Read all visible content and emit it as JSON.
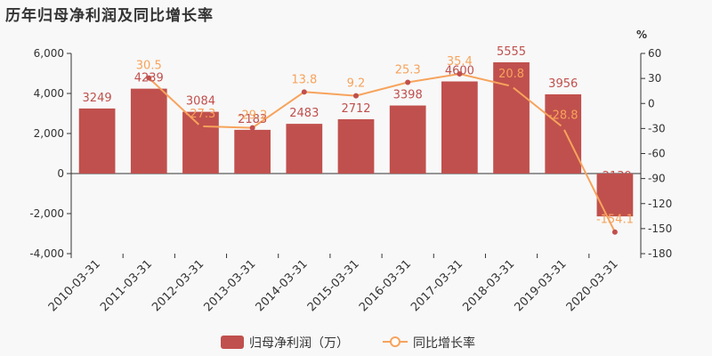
{
  "chart_data": {
    "type": "bar+line",
    "title": "历年归母净利润及同比增长率",
    "categories": [
      "2010-03-31",
      "2011-03-31",
      "2012-03-31",
      "2013-03-31",
      "2014-03-31",
      "2015-03-31",
      "2016-03-31",
      "2017-03-31",
      "2018-03-31",
      "2019-03-31",
      "2020-03-31"
    ],
    "left_axis": {
      "min": -4000,
      "max": 6000,
      "ticks": [
        "6,000",
        "4,000",
        "2,000",
        "0",
        "-2,000",
        "-4,000"
      ],
      "tick_values": [
        6000,
        4000,
        2000,
        0,
        -2000,
        -4000
      ]
    },
    "right_axis": {
      "unit": "%",
      "min": -180,
      "max": 60,
      "ticks": [
        "60",
        "30",
        "0",
        "-30",
        "-60",
        "-90",
        "-120",
        "-150",
        "-180"
      ],
      "tick_values": [
        60,
        30,
        0,
        -30,
        -60,
        -90,
        -120,
        -150,
        -180
      ]
    },
    "series": [
      {
        "name": "归母净利润（万）",
        "type": "bar",
        "color": "#c0504d",
        "values": [
          3249,
          4239,
          3084,
          2183,
          2483,
          2712,
          3398,
          4600,
          5555,
          3956,
          -2139
        ],
        "labels": [
          "3249",
          "4239",
          "3084",
          "2183",
          "2483",
          "2712",
          "3398",
          "4600",
          "5555",
          "3956",
          "-2139"
        ]
      },
      {
        "name": "同比增长率",
        "type": "line",
        "color": "#f7a35c",
        "values": [
          null,
          30.5,
          -27.3,
          -29.2,
          13.8,
          9.2,
          25.3,
          35.4,
          20.8,
          -28.8,
          -154.1
        ],
        "labels": [
          "",
          "30.5",
          "-27.3",
          "-29.2",
          "13.8",
          "9.2",
          "25.3",
          "35.4",
          "20.8",
          "-28.8",
          "-154.1"
        ]
      }
    ],
    "legend_position": "bottom-center",
    "grid": false
  }
}
